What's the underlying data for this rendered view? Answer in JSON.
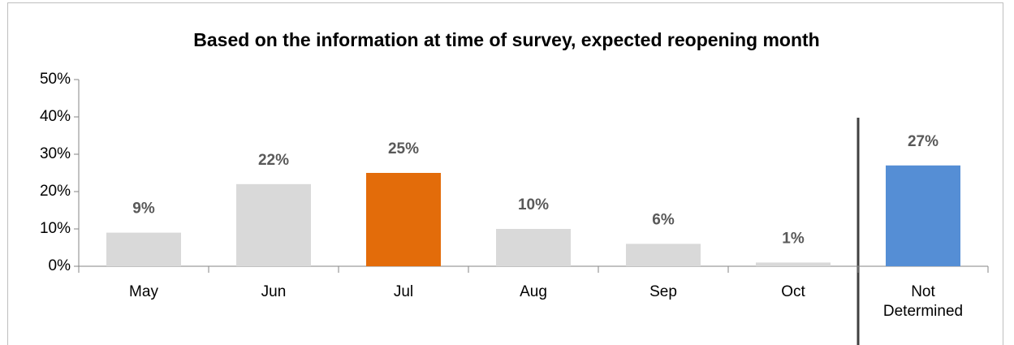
{
  "chart_data": {
    "type": "bar",
    "title": "Based on the information at time of survey, expected reopening month",
    "categories": [
      "May",
      "Jun",
      "Jul",
      "Aug",
      "Sep",
      "Oct",
      "Not Determined"
    ],
    "values": [
      9,
      22,
      25,
      10,
      6,
      1,
      27
    ],
    "value_labels": [
      "9%",
      "22%",
      "25%",
      "10%",
      "6%",
      "1%",
      "27%"
    ],
    "colors": [
      "#d9d9d9",
      "#d9d9d9",
      "#e36c0a",
      "#d9d9d9",
      "#d9d9d9",
      "#d9d9d9",
      "#558ed5"
    ],
    "ylim": [
      0,
      50
    ],
    "yticks": [
      {
        "value": 0,
        "label": "0%"
      },
      {
        "value": 10,
        "label": "10%"
      },
      {
        "value": 20,
        "label": "20%"
      },
      {
        "value": 30,
        "label": "30%"
      },
      {
        "value": 40,
        "label": "40%"
      },
      {
        "value": 50,
        "label": "50%"
      }
    ],
    "grid": false
  }
}
